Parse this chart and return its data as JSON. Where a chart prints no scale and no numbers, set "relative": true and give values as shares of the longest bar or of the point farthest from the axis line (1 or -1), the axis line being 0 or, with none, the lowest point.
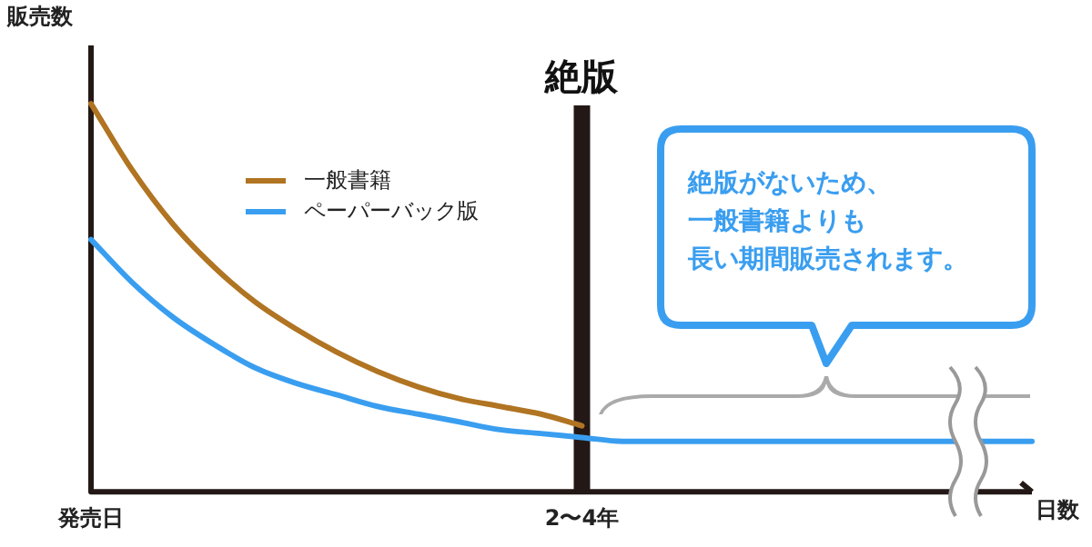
{
  "chart_data": {
    "type": "line",
    "relative": true,
    "xlabel": "日数",
    "ylabel": "販売数",
    "categories": [
      "発売日",
      null,
      null,
      null,
      null,
      null,
      null,
      null,
      null,
      null,
      null,
      null,
      "2〜4年",
      null,
      null,
      null,
      null,
      null,
      null,
      null,
      null,
      null,
      null,
      null
    ],
    "series": [
      {
        "name": "一般書籍",
        "color": "#b07422",
        "values": [
          1,
          0.83,
          0.69,
          0.58,
          0.49,
          0.42,
          0.36,
          0.31,
          0.27,
          0.24,
          0.22,
          0.2,
          0.17,
          null,
          null,
          null,
          null,
          null,
          null,
          null,
          null,
          null,
          null,
          null
        ]
      },
      {
        "name": "ペーパーバック版",
        "color": "#3a9ef0",
        "values": [
          0.65,
          0.54,
          0.45,
          0.38,
          0.32,
          0.28,
          0.25,
          0.22,
          0.2,
          0.18,
          0.16,
          0.15,
          0.14,
          0.13,
          0.13,
          0.13,
          0.13,
          0.13,
          0.13,
          0.13,
          0.13,
          0.13,
          0.13,
          0.13
        ]
      }
    ],
    "ref_lines": [
      {
        "axis": "x",
        "value": "2〜4年",
        "label": "絶版",
        "color": "#231815"
      }
    ],
    "annotations": [
      "絶版がないため、",
      "一般書籍よりも",
      "長い期間販売されます。"
    ],
    "legend": "top left",
    "tick_labels": "x",
    "marker": "none",
    "line_style": "solid",
    "grid": false
  }
}
